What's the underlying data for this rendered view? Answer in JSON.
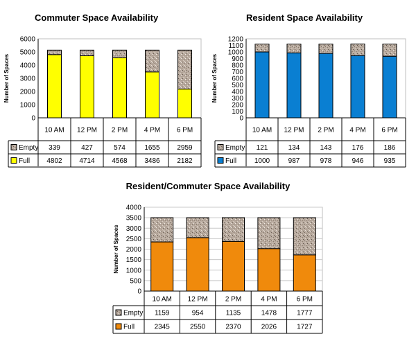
{
  "colors": {
    "commuter_full": "#ffff00",
    "resident_full": "#0a7fd2",
    "mixed_full": "#f08a0c",
    "empty_fill": "#b8aa9e",
    "grid": "#c8c8c8",
    "frame": "#000000"
  },
  "chart_data": [
    {
      "type": "bar",
      "stacked": true,
      "title": "Commuter Space Availability",
      "ylabel": "Number of Spaces",
      "ylim": [
        0,
        6000
      ],
      "yticks": [
        0,
        1000,
        2000,
        3000,
        4000,
        5000,
        6000
      ],
      "categories": [
        "10 AM",
        "12 PM",
        "2 PM",
        "4 PM",
        "6 PM"
      ],
      "series": [
        {
          "name": "Empty",
          "values": [
            339,
            427,
            574,
            1655,
            2959
          ]
        },
        {
          "name": "Full",
          "values": [
            4802,
            4714,
            4568,
            3486,
            2182
          ]
        }
      ],
      "legend": "table-below",
      "grid": false
    },
    {
      "type": "bar",
      "stacked": true,
      "title": "Resident Space Availability",
      "ylabel": "Number of Spaces",
      "ylim": [
        0,
        1200
      ],
      "yticks": [
        0,
        100,
        200,
        300,
        400,
        500,
        600,
        700,
        800,
        900,
        1000,
        1100,
        1200
      ],
      "categories": [
        "10 AM",
        "12 PM",
        "2 PM",
        "4 PM",
        "6 PM"
      ],
      "series": [
        {
          "name": "Empty",
          "values": [
            121,
            134,
            143,
            176,
            186
          ]
        },
        {
          "name": "Full",
          "values": [
            1000,
            987,
            978,
            946,
            935
          ]
        }
      ],
      "legend": "table-below",
      "grid": false
    },
    {
      "type": "bar",
      "stacked": true,
      "title": "Resident/Commuter Space Availability",
      "ylabel": "Number of Spaces",
      "ylim": [
        0,
        4000
      ],
      "yticks": [
        0,
        500,
        1000,
        1500,
        2000,
        2500,
        3000,
        3500,
        4000
      ],
      "categories": [
        "10 AM",
        "12 PM",
        "2 PM",
        "4 PM",
        "6 PM"
      ],
      "series": [
        {
          "name": "Empty",
          "values": [
            1159,
            954,
            1135,
            1478,
            1777
          ]
        },
        {
          "name": "Full",
          "values": [
            2345,
            2550,
            2370,
            2026,
            1727
          ]
        }
      ],
      "legend": "table-below",
      "grid": true
    }
  ]
}
